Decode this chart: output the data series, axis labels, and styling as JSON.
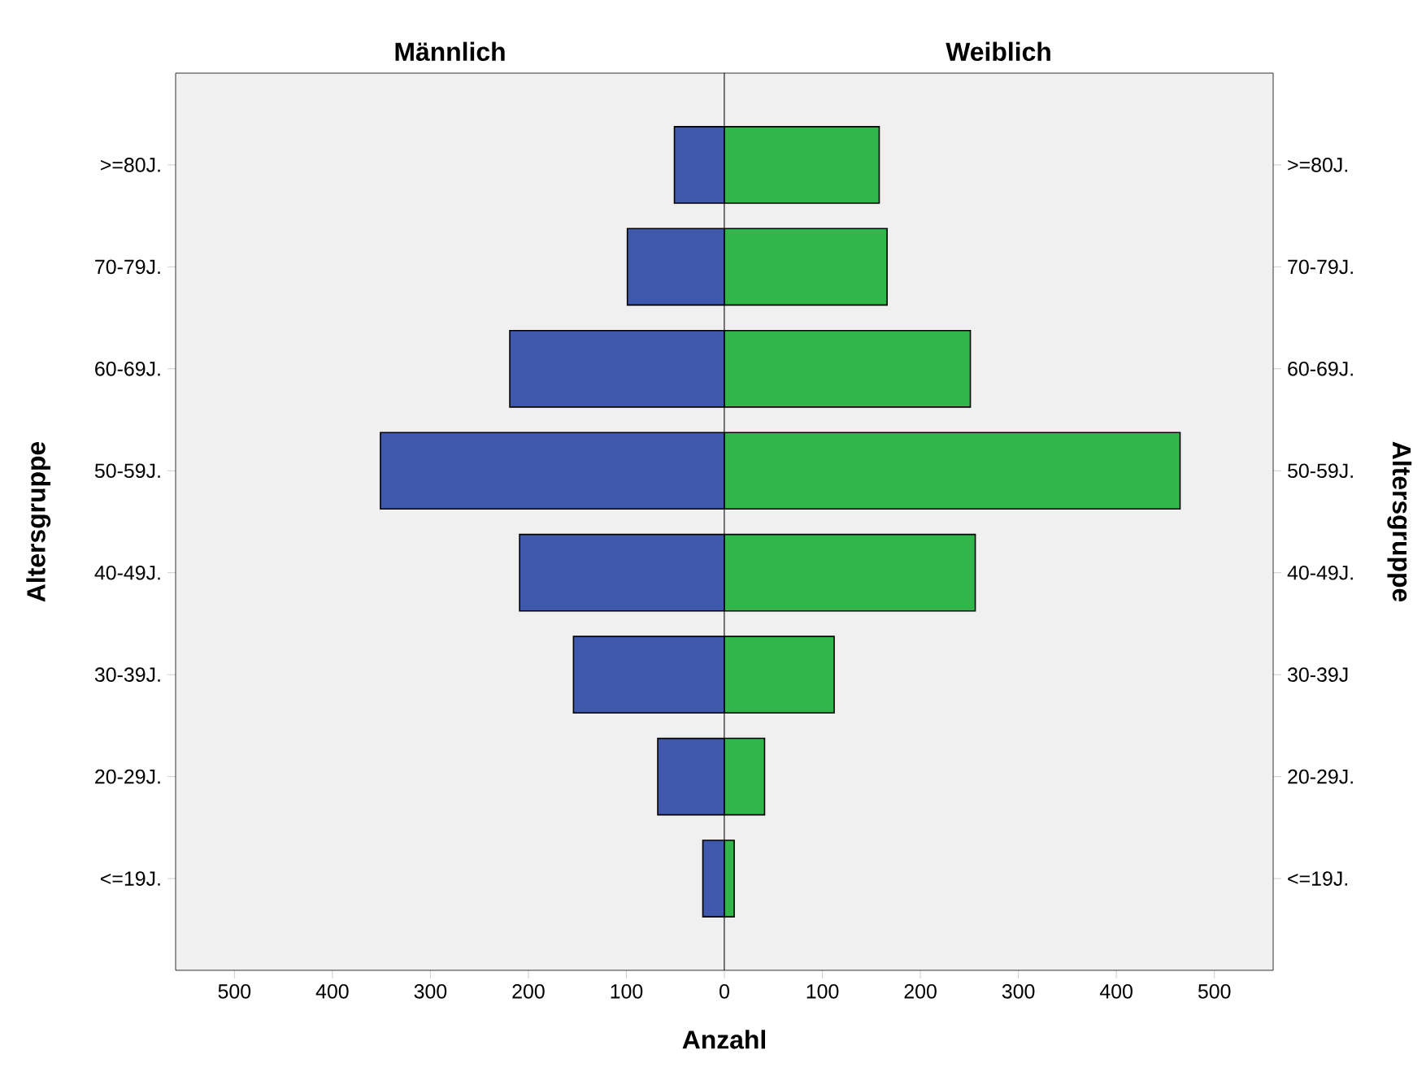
{
  "chart_data": [
    {
      "type": "bar",
      "orientation": "horizontal",
      "title": "Männlich",
      "xlabel": "Anzahl",
      "ylabel": "Altersgruppe",
      "categories": [
        ">=80J.",
        "70-79J.",
        "60-69J.",
        "50-59J.",
        "40-49J.",
        "30-39J.",
        "20-29J.",
        "<=19J."
      ],
      "values": [
        51,
        99,
        219,
        351,
        209,
        154,
        68,
        22
      ],
      "color": "#3e58ac",
      "xlim": [
        560,
        0
      ],
      "xticks": [
        500,
        400,
        300,
        200,
        100
      ]
    },
    {
      "type": "bar",
      "orientation": "horizontal",
      "title": "Weiblich",
      "y2label": "Altersgruppe",
      "y2_categories": [
        ">=80J.",
        "70-79J.",
        "60-69J.",
        "50-59J.",
        "40-49J.",
        "30-39J",
        "20-29J.",
        "<=19J."
      ],
      "values": [
        158,
        166,
        251,
        465,
        256,
        112,
        41,
        10
      ],
      "color": "#31b64b",
      "xlim": [
        0,
        560
      ],
      "xticks": [
        0,
        100,
        200,
        300,
        400,
        500
      ],
      "tick_labels": "x"
    }
  ]
}
